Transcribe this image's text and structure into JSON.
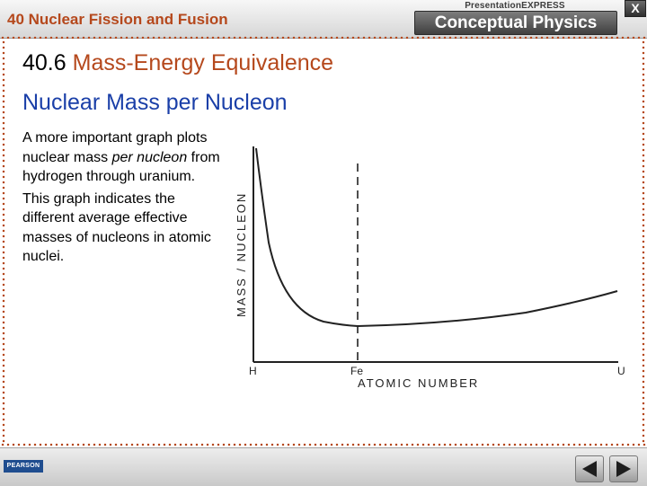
{
  "header": {
    "chapter_title": "40 Nuclear Fission and Fusion",
    "brand_top": "PresentationEXPRESS",
    "brand_name": "Conceptual Physics",
    "close_label": "X"
  },
  "slide": {
    "section_number": "40.6",
    "section_title": "Mass-Energy Equivalence",
    "subtitle": "Nuclear Mass per Nucleon",
    "paragraph1": {
      "part1": "A more important graph plots nuclear mass ",
      "italic": "per nucleon",
      "part2": " from hydrogen through uranium."
    },
    "paragraph2": "This graph indicates the different average effective masses of nucleons in atomic nuclei."
  },
  "graph": {
    "y_axis_label": "MASS / NUCLEON",
    "x_axis_label": "ATOMIC NUMBER",
    "tick_h": "H",
    "tick_fe": "Fe",
    "tick_u": "U"
  },
  "footer": {
    "publisher_logo": "PEARSON",
    "prev_icon": "previous-arrow-icon",
    "next_icon": "next-arrow-icon"
  },
  "colors": {
    "accent_red": "#b5481c",
    "subtitle_blue": "#1a3fa8"
  }
}
